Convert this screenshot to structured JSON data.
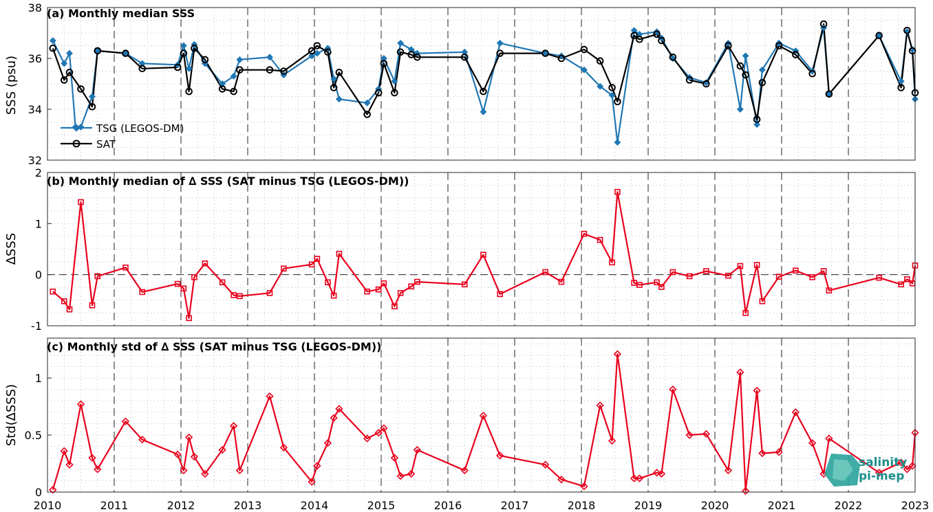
{
  "colors": {
    "tsg": "#1f77b4",
    "sat": "#000000",
    "delta": "#e8001c",
    "logo": "#1b8f8c"
  },
  "logo": {
    "line1": "salinity",
    "line2": "pi-mep"
  },
  "x_ticks": [
    "2010",
    "2011",
    "2012",
    "2013",
    "2014",
    "2015",
    "2016",
    "2017",
    "2018",
    "2019",
    "2020",
    "2021",
    "2022",
    "2023"
  ],
  "chart_data": [
    {
      "type": "line",
      "title": "(a) Monthly median SSS",
      "ylabel": "SSS (psu)",
      "ylim": [
        32,
        38
      ],
      "yticks": [
        "32",
        "34",
        "36",
        "38"
      ],
      "xlim": [
        2010,
        2023
      ],
      "grid": true,
      "legend": "bottom-left",
      "series": [
        {
          "name": "TSG (LEGOS-DM)",
          "x": [
            2010.08,
            2010.25,
            2010.33,
            2010.42,
            2010.5,
            2010.67,
            2010.75,
            2011.17,
            2011.42,
            2011.95,
            2012.04,
            2012.12,
            2012.2,
            2012.36,
            2012.62,
            2012.79,
            2012.88,
            2013.33,
            2013.54,
            2013.96,
            2014.04,
            2014.2,
            2014.29,
            2014.37,
            2014.79,
            2014.96,
            2015.04,
            2015.2,
            2015.29,
            2015.45,
            2015.54,
            2016.25,
            2016.53,
            2016.78,
            2017.46,
            2017.7,
            2018.04,
            2018.28,
            2018.46,
            2018.54,
            2018.79,
            2018.87,
            2019.13,
            2019.2,
            2019.37,
            2019.62,
            2019.87,
            2020.2,
            2020.38,
            2020.46,
            2020.63,
            2020.71,
            2020.96,
            2021.21,
            2021.46,
            2021.63,
            2021.71,
            2022.46,
            2022.79,
            2022.88,
            2022.96,
            2023.0
          ],
          "values": [
            36.7,
            35.8,
            36.2,
            33.3,
            33.3,
            34.5,
            36.3,
            36.2,
            35.8,
            35.75,
            36.5,
            35.6,
            36.55,
            35.8,
            35.0,
            35.3,
            35.95,
            36.05,
            35.35,
            36.1,
            36.2,
            36.4,
            35.2,
            34.4,
            34.25,
            34.8,
            36.0,
            35.1,
            36.6,
            36.35,
            36.2,
            36.25,
            33.9,
            36.6,
            36.2,
            36.1,
            35.55,
            34.9,
            34.55,
            32.7,
            37.1,
            36.95,
            37.05,
            36.8,
            36.0,
            35.25,
            35.05,
            36.6,
            34.0,
            36.1,
            33.4,
            35.55,
            36.6,
            36.3,
            35.5,
            37.2,
            34.6,
            36.9,
            35.1,
            37.05,
            36.35,
            34.4
          ]
        },
        {
          "name": "SAT",
          "x": [
            2010.08,
            2010.25,
            2010.33,
            2010.5,
            2010.67,
            2010.75,
            2011.17,
            2011.42,
            2011.95,
            2012.04,
            2012.12,
            2012.2,
            2012.36,
            2012.62,
            2012.79,
            2012.88,
            2013.33,
            2013.54,
            2013.96,
            2014.04,
            2014.2,
            2014.29,
            2014.37,
            2014.79,
            2014.96,
            2015.04,
            2015.2,
            2015.29,
            2015.45,
            2015.54,
            2016.25,
            2016.53,
            2016.78,
            2017.46,
            2017.7,
            2018.04,
            2018.28,
            2018.46,
            2018.54,
            2018.79,
            2018.87,
            2019.13,
            2019.2,
            2019.37,
            2019.62,
            2019.87,
            2020.2,
            2020.38,
            2020.46,
            2020.63,
            2020.71,
            2020.96,
            2021.21,
            2021.46,
            2021.63,
            2021.71,
            2022.46,
            2022.79,
            2022.88,
            2022.96,
            2023.0
          ],
          "values": [
            36.4,
            35.15,
            35.45,
            34.8,
            34.1,
            36.3,
            36.2,
            35.6,
            35.65,
            36.2,
            34.7,
            36.4,
            35.95,
            34.8,
            34.7,
            35.55,
            35.55,
            35.5,
            36.3,
            36.5,
            36.25,
            34.85,
            35.45,
            33.8,
            34.65,
            35.8,
            34.65,
            36.25,
            36.15,
            36.05,
            36.05,
            34.7,
            36.2,
            36.2,
            36.0,
            36.35,
            35.9,
            34.85,
            34.3,
            36.9,
            36.75,
            36.95,
            36.7,
            36.05,
            35.15,
            35.0,
            36.5,
            35.7,
            35.35,
            33.6,
            35.05,
            36.5,
            36.15,
            35.4,
            37.35,
            34.6,
            36.9,
            34.85,
            37.1,
            36.3,
            34.65
          ]
        }
      ]
    },
    {
      "type": "line",
      "title": "(b) Monthly median of ∆ SSS (SAT minus TSG (LEGOS-DM))",
      "ylabel": "∆SSS",
      "ylim": [
        -1,
        2
      ],
      "yticks": [
        "-1",
        "0",
        "1",
        "2"
      ],
      "xlim": [
        2010,
        2023
      ],
      "grid": true,
      "zero_line": true,
      "series": [
        {
          "x": [
            2010.08,
            2010.25,
            2010.33,
            2010.5,
            2010.67,
            2010.75,
            2011.17,
            2011.42,
            2011.95,
            2012.04,
            2012.12,
            2012.2,
            2012.36,
            2012.62,
            2012.79,
            2012.88,
            2013.33,
            2013.54,
            2013.96,
            2014.04,
            2014.2,
            2014.29,
            2014.37,
            2014.79,
            2014.96,
            2015.04,
            2015.2,
            2015.29,
            2015.45,
            2015.54,
            2016.25,
            2016.53,
            2016.78,
            2017.46,
            2017.7,
            2018.04,
            2018.28,
            2018.46,
            2018.54,
            2018.79,
            2018.87,
            2019.13,
            2019.2,
            2019.37,
            2019.62,
            2019.87,
            2020.2,
            2020.38,
            2020.46,
            2020.63,
            2020.71,
            2020.96,
            2021.21,
            2021.46,
            2021.63,
            2021.71,
            2022.46,
            2022.79,
            2022.88,
            2022.96,
            2023.0
          ],
          "values": [
            -0.33,
            -0.52,
            -0.68,
            1.42,
            -0.6,
            -0.03,
            0.14,
            -0.34,
            -0.18,
            -0.27,
            -0.85,
            -0.05,
            0.22,
            -0.15,
            -0.4,
            -0.42,
            -0.36,
            0.12,
            0.2,
            0.31,
            -0.15,
            -0.41,
            0.41,
            -0.33,
            -0.29,
            -0.17,
            -0.62,
            -0.36,
            -0.23,
            -0.14,
            -0.19,
            0.39,
            -0.38,
            0.05,
            -0.14,
            0.8,
            0.68,
            0.24,
            1.62,
            -0.16,
            -0.2,
            -0.15,
            -0.24,
            0.05,
            -0.03,
            0.07,
            -0.02,
            0.17,
            -0.75,
            0.19,
            -0.52,
            -0.04,
            0.08,
            -0.05,
            0.07,
            -0.31,
            -0.06,
            -0.19,
            -0.09,
            -0.17,
            0.18
          ]
        }
      ]
    },
    {
      "type": "line",
      "title": "(c) Monthly std of ∆ SSS (SAT minus TSG (LEGOS-DM))",
      "ylabel": "Std(∆SSS)",
      "ylim": [
        0,
        1.35
      ],
      "yticks": [
        "0",
        "0.5",
        "1"
      ],
      "ytick_values": [
        0,
        0.5,
        1
      ],
      "xlim": [
        2010,
        2023
      ],
      "grid": true,
      "series": [
        {
          "x": [
            2010.08,
            2010.25,
            2010.33,
            2010.5,
            2010.67,
            2010.75,
            2011.17,
            2011.42,
            2011.95,
            2012.04,
            2012.12,
            2012.2,
            2012.36,
            2012.62,
            2012.79,
            2012.88,
            2013.33,
            2013.54,
            2013.96,
            2014.04,
            2014.2,
            2014.29,
            2014.37,
            2014.79,
            2014.96,
            2015.04,
            2015.2,
            2015.29,
            2015.45,
            2015.54,
            2016.25,
            2016.53,
            2016.78,
            2017.46,
            2017.7,
            2018.04,
            2018.28,
            2018.46,
            2018.54,
            2018.79,
            2018.87,
            2019.13,
            2019.2,
            2019.37,
            2019.62,
            2019.87,
            2020.2,
            2020.38,
            2020.46,
            2020.63,
            2020.71,
            2020.96,
            2021.21,
            2021.46,
            2021.63,
            2021.71,
            2022.46,
            2022.79,
            2022.88,
            2022.96,
            2023.0
          ],
          "values": [
            0.02,
            0.36,
            0.24,
            0.77,
            0.3,
            0.2,
            0.62,
            0.46,
            0.33,
            0.19,
            0.48,
            0.31,
            0.16,
            0.37,
            0.58,
            0.19,
            0.84,
            0.39,
            0.09,
            0.23,
            0.43,
            0.65,
            0.73,
            0.47,
            0.52,
            0.56,
            0.3,
            0.14,
            0.16,
            0.37,
            0.19,
            0.67,
            0.32,
            0.24,
            0.11,
            0.05,
            0.76,
            0.45,
            1.21,
            0.12,
            0.12,
            0.17,
            0.16,
            0.9,
            0.5,
            0.51,
            0.19,
            1.05,
            0.01,
            0.89,
            0.34,
            0.35,
            0.7,
            0.43,
            0.16,
            0.47,
            0.17,
            0.26,
            0.2,
            0.23,
            0.52
          ]
        }
      ]
    }
  ]
}
